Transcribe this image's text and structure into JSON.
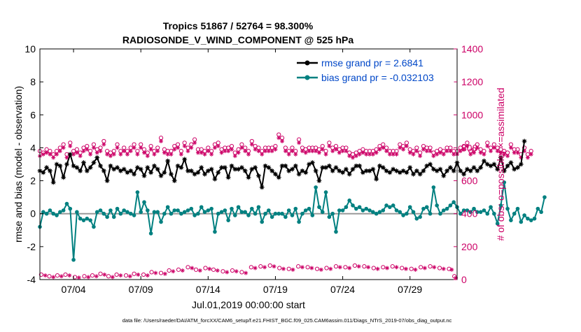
{
  "chart_data": {
    "type": "line",
    "title": "Tropics 51867 / 52764 = 98.300%",
    "subtitle": "RADIOSONDE_V_WIND_COMPONENT @ 525 hPa",
    "xlabel": "Jul.01,2019 00:00:00 start",
    "ylabel": "rmse and bias (model - observation)",
    "ylabel_right": "# of obs: o=possible; ×=assimilated",
    "footer": "data file: /Users/raeder/DAI/ATM_forcXX/CAM6_setup/f.e21.FHIST_BGC.f09_025.CAM6assim.011/Diags_NTrS_2019-07/obs_diag_output.nc",
    "x_range": [
      0.5,
      31.5
    ],
    "ylim": [
      -4,
      10
    ],
    "ylim_right": [
      0,
      1400
    ],
    "y_ticks": [
      "-4",
      "-2",
      "0",
      "2",
      "4",
      "6",
      "8",
      "10"
    ],
    "y_ticks_right": [
      "0",
      "200",
      "400",
      "600",
      "800",
      "1000",
      "1200",
      "1400"
    ],
    "x_ticks": [
      {
        "x": 3.0,
        "label": "07/04"
      },
      {
        "x": 8.0,
        "label": "07/09"
      },
      {
        "x": 13.0,
        "label": "07/14"
      },
      {
        "x": 18.0,
        "label": "07/19"
      },
      {
        "x": 23.0,
        "label": "07/24"
      },
      {
        "x": 28.0,
        "label": "07/29"
      }
    ],
    "legend": {
      "position": "top-right",
      "entries": [
        "rmse grand pr = 2.6841",
        "bias grand pr = -0.032103"
      ]
    },
    "step_days": 0.25,
    "x_start": 0.5,
    "series": [
      {
        "name": "rmse grand pr = 2.6841",
        "color": "#000000",
        "marker": "asterisk",
        "values": [
          2.6,
          2.5,
          2.8,
          2.6,
          1.9,
          3.0,
          2.9,
          2.2,
          3.0,
          3.6,
          2.9,
          2.8,
          2.6,
          3.1,
          2.6,
          2.8,
          3.1,
          3.4,
          2.9,
          2.6,
          2.0,
          2.9,
          2.7,
          2.8,
          2.6,
          2.7,
          2.5,
          2.6,
          2.4,
          2.8,
          2.7,
          2.3,
          2.8,
          2.5,
          2.9,
          2.7,
          2.3,
          2.5,
          3.2,
          2.4,
          2.0,
          2.9,
          2.8,
          3.3,
          2.6,
          2.6,
          2.4,
          2.5,
          2.8,
          2.4,
          2.6,
          2.7,
          2.1,
          2.5,
          2.8,
          2.8,
          2.2,
          2.9,
          2.7,
          2.7,
          2.8,
          2.6,
          2.2,
          2.7,
          2.8,
          2.3,
          1.6,
          2.9,
          2.8,
          2.6,
          2.4,
          2.2,
          2.9,
          2.9,
          2.6,
          2.7,
          2.9,
          2.4,
          2.6,
          2.5,
          3.0,
          3.1,
          2.6,
          2.0,
          2.8,
          2.8,
          2.9,
          2.6,
          2.8,
          2.6,
          2.5,
          2.7,
          2.4,
          2.7,
          2.9,
          2.9,
          2.5,
          2.6,
          2.6,
          2.7,
          2.1,
          2.9,
          2.8,
          2.6,
          2.5,
          2.7,
          2.6,
          2.5,
          2.6,
          2.5,
          2.8,
          2.4,
          2.6,
          2.4,
          2.6,
          2.9,
          3.0,
          2.7,
          2.6,
          2.7,
          2.3,
          2.6,
          2.8,
          2.6,
          3.1,
          2.6,
          2.4,
          2.7,
          2.6,
          2.8,
          2.6,
          2.8,
          3.2,
          3.0,
          2.9,
          3.0,
          2.7,
          3.4,
          2.6,
          2.9,
          3.1,
          2.7,
          2.8,
          3.0,
          4.4
        ]
      },
      {
        "name": "bias grand pr = -0.032103",
        "color": "#008080",
        "marker": "dot",
        "values": [
          -0.8,
          0.1,
          0.0,
          0.2,
          0.0,
          -0.1,
          0.1,
          0.2,
          0.6,
          0.3,
          -2.8,
          0.1,
          -0.3,
          -0.4,
          -0.3,
          -0.4,
          -0.8,
          0.1,
          0.2,
          0.0,
          -0.2,
          0.2,
          -0.2,
          0.3,
          0.0,
          0.2,
          0.1,
          0.0,
          -0.1,
          1.3,
          0.1,
          0.7,
          0.2,
          -1.2,
          0.1,
          0.1,
          -0.5,
          0.0,
          0.4,
          0.0,
          0.2,
          0.2,
          0.0,
          0.1,
          0.2,
          0.3,
          -0.1,
          0.0,
          0.4,
          0.1,
          0.2,
          0.3,
          -1.1,
          0.0,
          0.1,
          0.2,
          -0.4,
          0.3,
          -0.1,
          0.4,
          0.1,
          0.1,
          -0.1,
          0.3,
          0.0,
          0.4,
          -0.5,
          0.0,
          0.2,
          -0.2,
          0.0,
          0.0,
          0.0,
          -0.2,
          0.2,
          -0.1,
          0.3,
          -0.5,
          0.0,
          0.2,
          0.3,
          -0.1,
          1.6,
          0.4,
          0.1,
          1.3,
          -0.2,
          0.0,
          -1.1,
          0.2,
          0.2,
          0.4,
          0.8,
          0.5,
          0.3,
          0.4,
          0.2,
          0.3,
          0.2,
          0.1,
          0.0,
          0.1,
          0.2,
          0.5,
          0.4,
          0.5,
          0.2,
          0.1,
          -0.1,
          0.0,
          0.4,
          0.1,
          -0.3,
          -0.2,
          0.3,
          0.4,
          0.0,
          1.6,
          0.5,
          0.0,
          0.2,
          0.3,
          0.5,
          0.7,
          0.4,
          0.0,
          0.2,
          0.2,
          0.1,
          0.3,
          0.1,
          0.1,
          0.2,
          0.0,
          0.4,
          0.0,
          -0.6,
          0.5,
          1.9,
          0.3,
          -0.4,
          0.0,
          0.3,
          -0.5,
          -0.1,
          -0.3,
          -0.4,
          -0.3,
          0.3,
          0.1,
          1.0
        ]
      }
    ],
    "obs_possible": {
      "name": "possible",
      "color": "#cc0066",
      "marker": "circle",
      "values": [
        780,
        770,
        790,
        780,
        760,
        780,
        800,
        820,
        760,
        830,
        780,
        790,
        770,
        800,
        810,
        780,
        820,
        790,
        800,
        840,
        780,
        770,
        780,
        820,
        780,
        800,
        780,
        800,
        820,
        780,
        820,
        790,
        770,
        810,
        780,
        800,
        860,
        790,
        780,
        780,
        810,
        820,
        780,
        830,
        800,
        820,
        850,
        790,
        790,
        780,
        800,
        780,
        820,
        830,
        790,
        800,
        800,
        810,
        770,
        790,
        820,
        800,
        780,
        840,
        810,
        800,
        780,
        800,
        800,
        800,
        810,
        880,
        860,
        800,
        780,
        800,
        780,
        850,
        800,
        790,
        800,
        800,
        800,
        790,
        810,
        780,
        830,
        800,
        810,
        790,
        800,
        800,
        770,
        760,
        770,
        780,
        790,
        780,
        780,
        780,
        790,
        810,
        820,
        800,
        780,
        780,
        780,
        820,
        810,
        830,
        790,
        780,
        800,
        770,
        810,
        800,
        800,
        770,
        780,
        790,
        780,
        800,
        800,
        780,
        780,
        800,
        810,
        830,
        780,
        790,
        820,
        790,
        780,
        830,
        800,
        820,
        800,
        790,
        780,
        770,
        820,
        790,
        790,
        760,
        800,
        760,
        780
      ]
    },
    "obs_assimilated": {
      "name": "assimilated",
      "color": "#cc0066",
      "marker": "asterisk",
      "values": [
        750,
        760,
        770,
        760,
        740,
        760,
        780,
        800,
        740,
        810,
        760,
        770,
        750,
        780,
        790,
        760,
        800,
        770,
        780,
        820,
        760,
        750,
        760,
        800,
        760,
        780,
        760,
        780,
        800,
        760,
        800,
        770,
        750,
        790,
        760,
        780,
        840,
        770,
        760,
        760,
        790,
        800,
        760,
        810,
        780,
        800,
        830,
        770,
        770,
        760,
        780,
        760,
        800,
        810,
        770,
        780,
        780,
        790,
        750,
        770,
        800,
        780,
        760,
        820,
        790,
        780,
        760,
        780,
        780,
        780,
        790,
        860,
        840,
        780,
        760,
        780,
        760,
        830,
        780,
        770,
        780,
        780,
        780,
        770,
        790,
        760,
        810,
        780,
        790,
        770,
        780,
        780,
        750,
        740,
        750,
        760,
        770,
        760,
        760,
        760,
        770,
        790,
        800,
        780,
        760,
        760,
        760,
        800,
        790,
        810,
        770,
        760,
        780,
        750,
        790,
        780,
        780,
        750,
        760,
        770,
        760,
        780,
        780,
        760,
        760,
        780,
        790,
        810,
        760,
        770,
        800,
        770,
        760,
        810,
        780,
        800,
        780,
        770,
        760,
        750,
        800,
        770,
        770,
        740,
        780,
        740,
        760
      ]
    },
    "obs_possible_low": [
      {
        "x": 0.6,
        "v": 30
      },
      {
        "x": 1.2,
        "v": 20
      },
      {
        "x": 1.8,
        "v": 25
      },
      {
        "x": 2.4,
        "v": 30
      },
      {
        "x": 3.1,
        "v": 15
      },
      {
        "x": 3.8,
        "v": 20
      },
      {
        "x": 4.4,
        "v": 25
      },
      {
        "x": 5.0,
        "v": 35
      },
      {
        "x": 5.6,
        "v": 20
      },
      {
        "x": 6.2,
        "v": 30
      },
      {
        "x": 6.9,
        "v": 25
      },
      {
        "x": 7.5,
        "v": 35
      },
      {
        "x": 8.2,
        "v": 30
      },
      {
        "x": 8.8,
        "v": 45
      },
      {
        "x": 9.5,
        "v": 40
      },
      {
        "x": 10.1,
        "v": 55
      },
      {
        "x": 10.8,
        "v": 60
      },
      {
        "x": 11.5,
        "v": 75
      },
      {
        "x": 12.1,
        "v": 60
      },
      {
        "x": 12.8,
        "v": 70
      },
      {
        "x": 13.4,
        "v": 60
      },
      {
        "x": 14.1,
        "v": 50
      },
      {
        "x": 14.8,
        "v": 55
      },
      {
        "x": 15.5,
        "v": 45
      },
      {
        "x": 16.2,
        "v": 75
      },
      {
        "x": 16.9,
        "v": 80
      },
      {
        "x": 17.6,
        "v": 85
      },
      {
        "x": 18.3,
        "v": 70
      },
      {
        "x": 19.0,
        "v": 65
      },
      {
        "x": 19.7,
        "v": 80
      },
      {
        "x": 20.4,
        "v": 75
      },
      {
        "x": 21.1,
        "v": 65
      },
      {
        "x": 21.8,
        "v": 70
      },
      {
        "x": 22.5,
        "v": 80
      },
      {
        "x": 23.2,
        "v": 75
      },
      {
        "x": 23.9,
        "v": 85
      },
      {
        "x": 24.6,
        "v": 80
      },
      {
        "x": 25.3,
        "v": 70
      },
      {
        "x": 26.0,
        "v": 75
      },
      {
        "x": 26.7,
        "v": 80
      },
      {
        "x": 27.4,
        "v": 70
      },
      {
        "x": 28.1,
        "v": 65
      },
      {
        "x": 28.8,
        "v": 75
      },
      {
        "x": 29.5,
        "v": 80
      },
      {
        "x": 30.2,
        "v": 70
      },
      {
        "x": 30.9,
        "v": 65
      },
      {
        "x": 31.3,
        "v": 20
      }
    ],
    "obs_assimilated_low": [
      {
        "x": 0.9,
        "v": 25
      },
      {
        "x": 1.5,
        "v": 15
      },
      {
        "x": 2.1,
        "v": 20
      },
      {
        "x": 2.7,
        "v": 25
      },
      {
        "x": 3.4,
        "v": 12
      },
      {
        "x": 4.1,
        "v": 15
      },
      {
        "x": 4.7,
        "v": 20
      },
      {
        "x": 5.3,
        "v": 30
      },
      {
        "x": 5.9,
        "v": 15
      },
      {
        "x": 6.5,
        "v": 25
      },
      {
        "x": 7.2,
        "v": 20
      },
      {
        "x": 7.8,
        "v": 30
      },
      {
        "x": 8.5,
        "v": 25
      },
      {
        "x": 9.1,
        "v": 40
      },
      {
        "x": 9.8,
        "v": 35
      },
      {
        "x": 10.4,
        "v": 50
      },
      {
        "x": 11.1,
        "v": 55
      },
      {
        "x": 11.8,
        "v": 70
      },
      {
        "x": 12.4,
        "v": 55
      },
      {
        "x": 13.1,
        "v": 65
      },
      {
        "x": 13.7,
        "v": 55
      },
      {
        "x": 14.4,
        "v": 45
      },
      {
        "x": 15.1,
        "v": 50
      },
      {
        "x": 15.8,
        "v": 40
      },
      {
        "x": 16.5,
        "v": 70
      },
      {
        "x": 17.2,
        "v": 75
      },
      {
        "x": 17.9,
        "v": 80
      },
      {
        "x": 18.6,
        "v": 65
      },
      {
        "x": 19.3,
        "v": 60
      },
      {
        "x": 20.0,
        "v": 75
      },
      {
        "x": 20.7,
        "v": 70
      },
      {
        "x": 21.4,
        "v": 60
      },
      {
        "x": 22.1,
        "v": 65
      },
      {
        "x": 22.8,
        "v": 75
      },
      {
        "x": 23.5,
        "v": 70
      },
      {
        "x": 24.2,
        "v": 80
      },
      {
        "x": 24.9,
        "v": 75
      },
      {
        "x": 25.6,
        "v": 65
      },
      {
        "x": 26.3,
        "v": 70
      },
      {
        "x": 27.0,
        "v": 75
      },
      {
        "x": 27.7,
        "v": 65
      },
      {
        "x": 28.4,
        "v": 60
      },
      {
        "x": 29.1,
        "v": 70
      },
      {
        "x": 29.8,
        "v": 75
      },
      {
        "x": 30.5,
        "v": 65
      },
      {
        "x": 31.1,
        "v": 60
      },
      {
        "x": 31.4,
        "v": 10
      }
    ]
  }
}
